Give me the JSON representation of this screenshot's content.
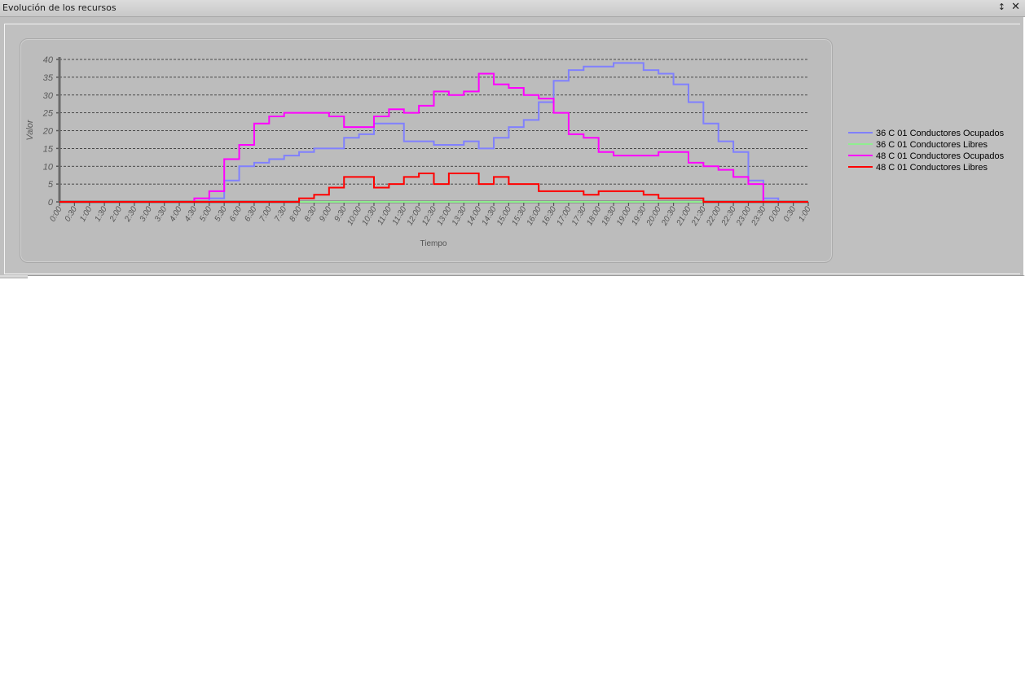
{
  "window": {
    "title": "Evolución de los recursos",
    "pin_icon": "pin-icon",
    "close_icon": "close-icon"
  },
  "chart_data": {
    "type": "line",
    "step": true,
    "xlabel": "Tiempo",
    "ylabel": "Valor",
    "ylim": [
      0,
      40
    ],
    "yticks": [
      0,
      5,
      10,
      15,
      20,
      25,
      30,
      35,
      40
    ],
    "grid": true,
    "legend_position": "right",
    "x": [
      "0:00",
      "0:30",
      "1:00",
      "1:30",
      "2:00",
      "2:30",
      "3:00",
      "3:30",
      "4:00",
      "4:30",
      "5:00",
      "5:30",
      "6:00",
      "6:30",
      "7:00",
      "7:30",
      "8:00",
      "8:30",
      "9:00",
      "9:30",
      "10:00",
      "10:30",
      "11:00",
      "11:30",
      "12:00",
      "12:30",
      "13:00",
      "13:30",
      "14:00",
      "14:30",
      "15:00",
      "15:30",
      "16:00",
      "16:30",
      "17:00",
      "17:30",
      "18:00",
      "18:30",
      "19:00",
      "19:30",
      "20:00",
      "20:30",
      "21:00",
      "21:30",
      "22:00",
      "22:30",
      "23:00",
      "23:30",
      "0:00",
      "0:30",
      "1:00"
    ],
    "series": [
      {
        "name": "36 C 01 Conductores Ocupados",
        "color": "#8080ff",
        "values": [
          0,
          0,
          0,
          0,
          0,
          0,
          0,
          0,
          0,
          0,
          1,
          6,
          10,
          11,
          12,
          13,
          14,
          15,
          15,
          18,
          19,
          22,
          22,
          17,
          17,
          16,
          16,
          17,
          15,
          18,
          21,
          23,
          28,
          34,
          37,
          38,
          38,
          39,
          39,
          37,
          36,
          33,
          28,
          22,
          17,
          14,
          6,
          1,
          0,
          0,
          0
        ]
      },
      {
        "name": "36 C 01 Conductores Libres",
        "color": "#90ee90",
        "values": [
          0,
          0,
          0,
          0,
          0,
          0,
          0,
          0,
          0,
          0,
          0,
          0,
          0,
          0,
          0,
          0,
          0,
          0,
          0,
          0,
          0,
          0,
          0,
          0,
          0,
          0,
          0,
          0,
          0,
          0,
          0,
          0,
          0,
          0,
          0,
          0,
          0,
          0,
          0,
          0,
          0,
          0,
          0,
          0,
          0,
          0,
          0,
          0,
          0,
          0,
          0
        ]
      },
      {
        "name": "48 C 01 Conductores Ocupados",
        "color": "#ff00ff",
        "values": [
          0,
          0,
          0,
          0,
          0,
          0,
          0,
          0,
          0,
          1,
          3,
          12,
          16,
          22,
          24,
          25,
          25,
          25,
          24,
          21,
          21,
          24,
          26,
          25,
          27,
          31,
          30,
          31,
          36,
          33,
          32,
          30,
          29,
          25,
          19,
          18,
          14,
          13,
          13,
          13,
          14,
          14,
          11,
          10,
          9,
          7,
          5,
          0,
          0,
          0,
          0
        ]
      },
      {
        "name": "48 C 01 Conductores Libres",
        "color": "#ff0000",
        "values": [
          0,
          0,
          0,
          0,
          0,
          0,
          0,
          0,
          0,
          0,
          0,
          0,
          0,
          0,
          0,
          0,
          1,
          2,
          4,
          7,
          7,
          4,
          5,
          7,
          8,
          5,
          8,
          8,
          5,
          7,
          5,
          5,
          3,
          3,
          3,
          2,
          3,
          3,
          3,
          2,
          1,
          1,
          1,
          0,
          0,
          0,
          0,
          0,
          0,
          0,
          0
        ]
      }
    ]
  }
}
